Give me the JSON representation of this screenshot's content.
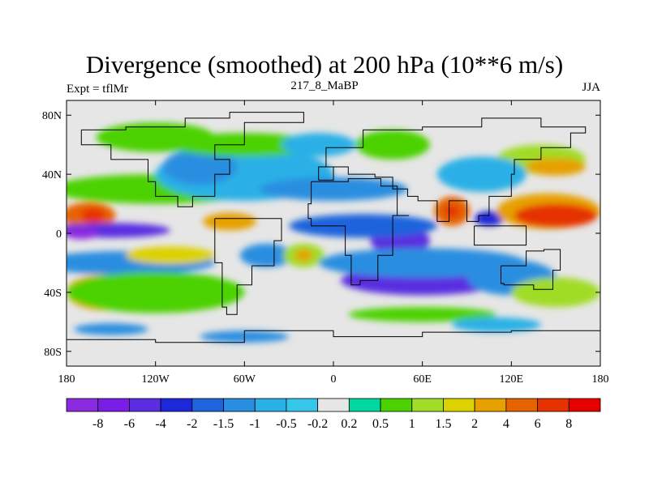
{
  "header": {
    "title": "Divergence (smoothed) at 200 hPa (10**6 m/s)",
    "left_label": "Expt = tflMr",
    "center_label": "217_8_MaBP",
    "right_label": "JJA"
  },
  "colors": {
    "plot_background": "#e6e6e6",
    "coastline": "#000000",
    "frame": "#000000"
  },
  "chart_data": {
    "type": "heatmap",
    "title": "Divergence (smoothed) at 200 hPa (10**6 m/s)",
    "variable": "Divergence (smoothed) at 200 hPa",
    "units": "10**6 m/s",
    "experiment": "tflMr",
    "case": "217_8_MaBP",
    "season": "JJA",
    "xlim": [
      -180,
      180
    ],
    "ylim": [
      -90,
      90
    ],
    "x_ticks": [
      -180,
      -120,
      -60,
      0,
      60,
      120,
      180
    ],
    "x_tick_labels": [
      "180",
      "120W",
      "60W",
      "0",
      "60E",
      "120E",
      "180"
    ],
    "y_ticks": [
      80,
      40,
      0,
      -40,
      -80
    ],
    "y_tick_labels": [
      "80N",
      "40N",
      "0",
      "40S",
      "80S"
    ],
    "colorbar": {
      "levels": [
        "-8",
        "-6",
        "-4",
        "-2",
        "-1.5",
        "-1",
        "-0.5",
        "-0.2",
        "0.2",
        "0.5",
        "1",
        "1.5",
        "2",
        "4",
        "6",
        "8"
      ],
      "colors": [
        "#8a2be2",
        "#7a1ee6",
        "#5a2ee0",
        "#1e28d8",
        "#1e64dc",
        "#2a8ee0",
        "#2ab0e6",
        "#36c6ea",
        "#e6e6e6",
        "#00d8a0",
        "#4cd200",
        "#a0dc28",
        "#dcd200",
        "#e6a000",
        "#e66400",
        "#e63200",
        "#e60000"
      ]
    },
    "field_blobs": [
      {
        "lon": -165,
        "lat": 12,
        "rlon": 18,
        "rlat": 9,
        "level": "4"
      },
      {
        "lon": -162,
        "lat": 12,
        "rlon": 8,
        "rlat": 5,
        "level": "6"
      },
      {
        "lon": -150,
        "lat": 2,
        "rlon": 40,
        "rlat": 5,
        "level": "-4"
      },
      {
        "lon": -170,
        "lat": 0,
        "rlon": 12,
        "rlat": 4,
        "level": "-8"
      },
      {
        "lon": -120,
        "lat": 30,
        "rlon": 70,
        "rlat": 10,
        "level": "0.5"
      },
      {
        "lon": -140,
        "lat": -20,
        "rlon": 60,
        "rlat": 8,
        "level": "-1"
      },
      {
        "lon": -110,
        "lat": -15,
        "rlon": 30,
        "rlat": 6,
        "level": "1.5"
      },
      {
        "lon": -155,
        "lat": -40,
        "rlon": 25,
        "rlat": 12,
        "level": "2"
      },
      {
        "lon": -120,
        "lat": -40,
        "rlon": 60,
        "rlat": 14,
        "level": "0.5"
      },
      {
        "lon": -70,
        "lat": 8,
        "rlon": 18,
        "rlat": 6,
        "level": "2"
      },
      {
        "lon": -45,
        "lat": -15,
        "rlon": 18,
        "rlat": 8,
        "level": "-1"
      },
      {
        "lon": -20,
        "lat": -15,
        "rlon": 14,
        "rlat": 8,
        "level": "1"
      },
      {
        "lon": -20,
        "lat": -15,
        "rlon": 6,
        "rlat": 4,
        "level": "2"
      },
      {
        "lon": -60,
        "lat": 40,
        "rlon": 60,
        "rlat": 18,
        "level": "-0.5"
      },
      {
        "lon": -90,
        "lat": 45,
        "rlon": 25,
        "rlat": 12,
        "level": "-1"
      },
      {
        "lon": -60,
        "lat": 60,
        "rlon": 50,
        "rlat": 8,
        "level": "0.5"
      },
      {
        "lon": -120,
        "lat": 65,
        "rlon": 40,
        "rlat": 10,
        "level": "0.5"
      },
      {
        "lon": -10,
        "lat": 60,
        "rlon": 25,
        "rlat": 8,
        "level": "-0.5"
      },
      {
        "lon": 40,
        "lat": 60,
        "rlon": 25,
        "rlat": 10,
        "level": "0.5"
      },
      {
        "lon": 45,
        "lat": -5,
        "rlon": 20,
        "rlat": 10,
        "level": "-4"
      },
      {
        "lon": 20,
        "lat": 5,
        "rlon": 50,
        "rlat": 8,
        "level": "-1.5"
      },
      {
        "lon": 80,
        "lat": 15,
        "rlon": 12,
        "rlat": 10,
        "level": "4"
      },
      {
        "lon": 80,
        "lat": 15,
        "rlon": 5,
        "rlat": 4,
        "level": "6"
      },
      {
        "lon": 105,
        "lat": 10,
        "rlon": 10,
        "rlat": 5,
        "level": "-2"
      },
      {
        "lon": 145,
        "lat": 15,
        "rlon": 35,
        "rlat": 12,
        "level": "2"
      },
      {
        "lon": 150,
        "lat": 12,
        "rlon": 28,
        "rlat": 8,
        "level": "6"
      },
      {
        "lon": 60,
        "lat": -32,
        "rlon": 55,
        "rlat": 10,
        "level": "-4"
      },
      {
        "lon": 60,
        "lat": -20,
        "rlon": 70,
        "rlat": 10,
        "level": "-1"
      },
      {
        "lon": 120,
        "lat": -30,
        "rlon": 30,
        "rlat": 12,
        "level": "-1"
      },
      {
        "lon": 150,
        "lat": -40,
        "rlon": 30,
        "rlat": 10,
        "level": "1"
      },
      {
        "lon": 140,
        "lat": 50,
        "rlon": 30,
        "rlat": 10,
        "level": "1"
      },
      {
        "lon": 150,
        "lat": 45,
        "rlon": 20,
        "rlat": 6,
        "level": "2"
      },
      {
        "lon": 100,
        "lat": 40,
        "rlon": 30,
        "rlat": 12,
        "level": "-0.5"
      },
      {
        "lon": 0,
        "lat": 30,
        "rlon": 50,
        "rlat": 8,
        "level": "-1"
      },
      {
        "lon": 60,
        "lat": -55,
        "rlon": 50,
        "rlat": 5,
        "level": "0.5"
      },
      {
        "lon": -150,
        "lat": -65,
        "rlon": 25,
        "rlat": 4,
        "level": "-1"
      },
      {
        "lon": -60,
        "lat": -70,
        "rlon": 30,
        "rlat": 4,
        "level": "-1"
      },
      {
        "lon": 110,
        "lat": -62,
        "rlon": 30,
        "rlat": 5,
        "level": "-0.5"
      }
    ]
  }
}
